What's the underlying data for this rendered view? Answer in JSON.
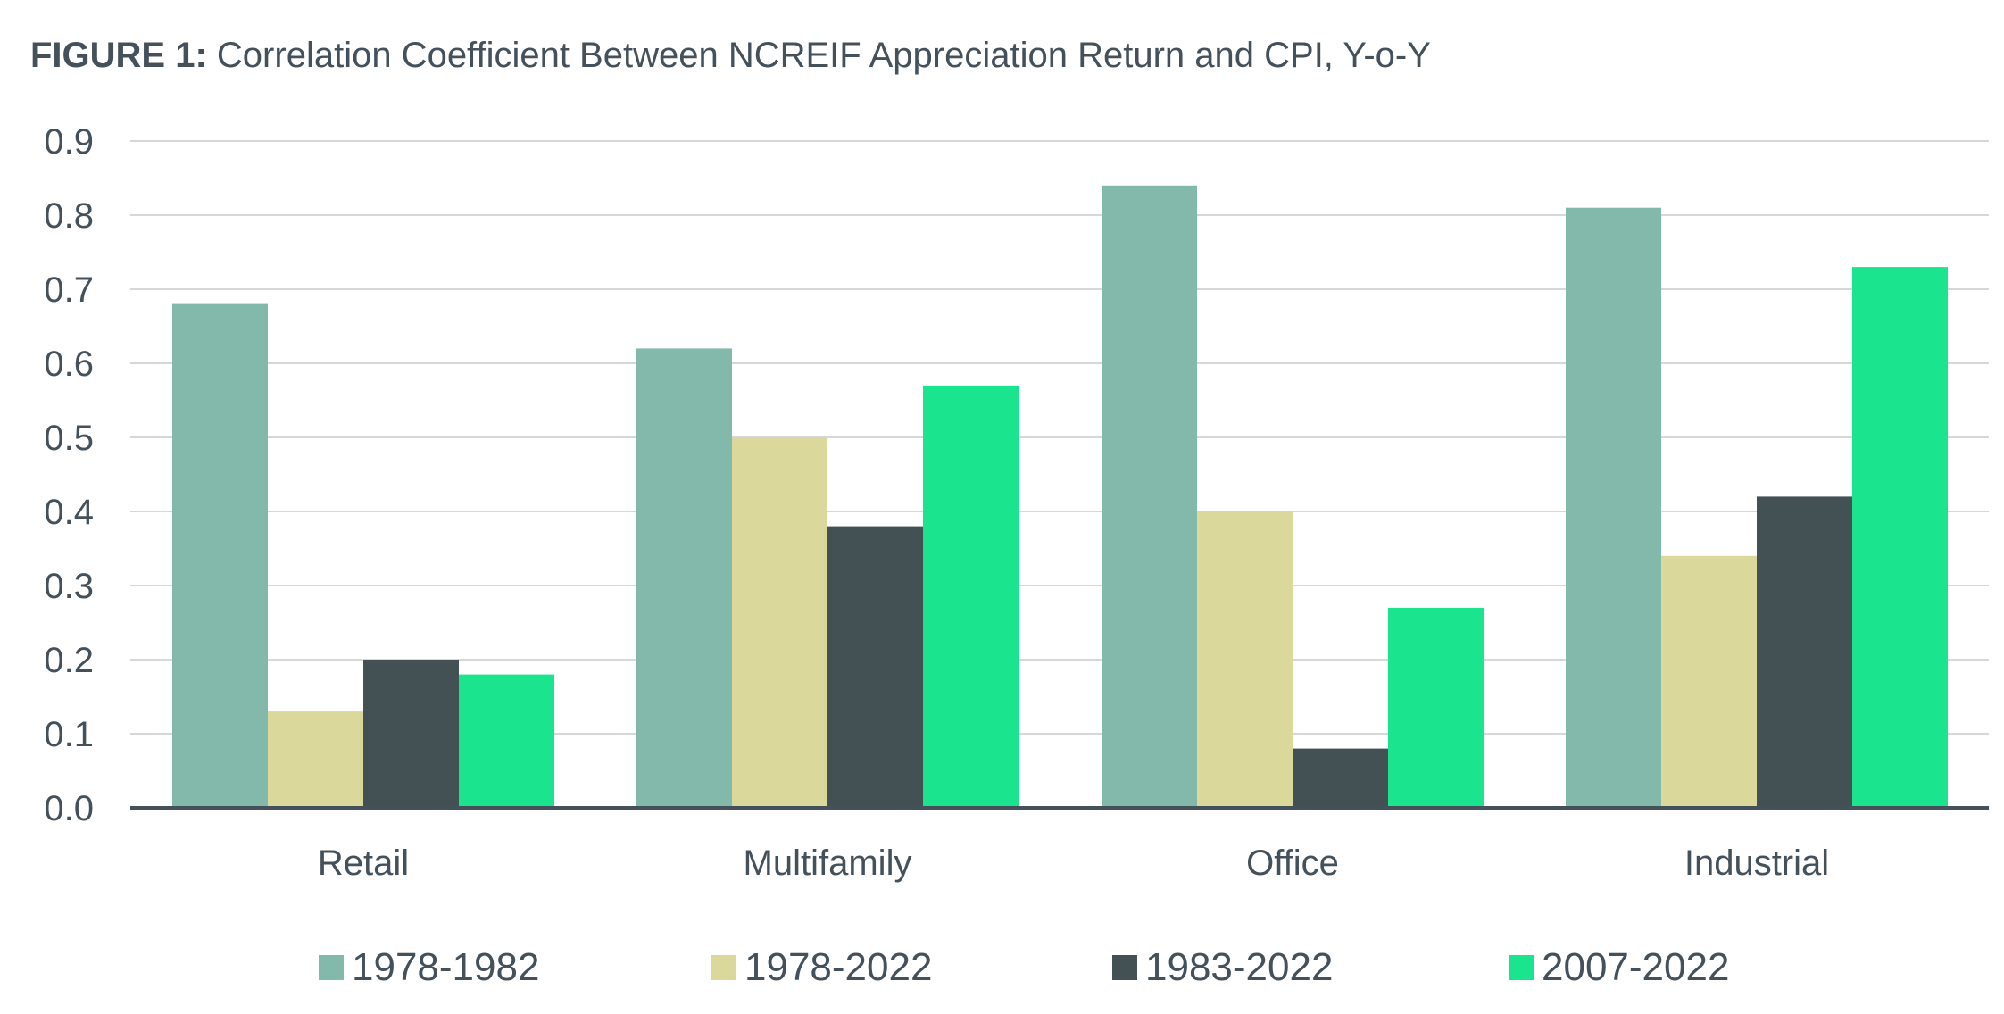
{
  "title": {
    "label": "FIGURE 1:",
    "text": "Correlation Coefficient Between NCREIF Appreciation Return and CPI, Y-o-Y"
  },
  "chart_data": {
    "type": "bar",
    "title": "FIGURE 1: Correlation Coefficient Between NCREIF Appreciation Return and CPI, Y-o-Y",
    "xlabel": "",
    "ylabel": "",
    "ylim": [
      0,
      0.9
    ],
    "yticks": [
      "0.0",
      "0.1",
      "0.2",
      "0.3",
      "0.4",
      "0.5",
      "0.6",
      "0.7",
      "0.8",
      "0.9"
    ],
    "grid": true,
    "legend_position": "bottom",
    "categories": [
      "Retail",
      "Multifamily",
      "Office",
      "Industrial"
    ],
    "series": [
      {
        "name": "1978-1982",
        "color": "#82b9aa",
        "values": [
          0.68,
          0.62,
          0.84,
          0.81
        ]
      },
      {
        "name": "1978-2022",
        "color": "#dbd89b",
        "values": [
          0.13,
          0.5,
          0.4,
          0.34
        ]
      },
      {
        "name": "1983-2022",
        "color": "#435155",
        "values": [
          0.2,
          0.38,
          0.08,
          0.42
        ]
      },
      {
        "name": "2007-2022",
        "color": "#1ae58e",
        "values": [
          0.18,
          0.57,
          0.27,
          0.73
        ]
      }
    ]
  }
}
